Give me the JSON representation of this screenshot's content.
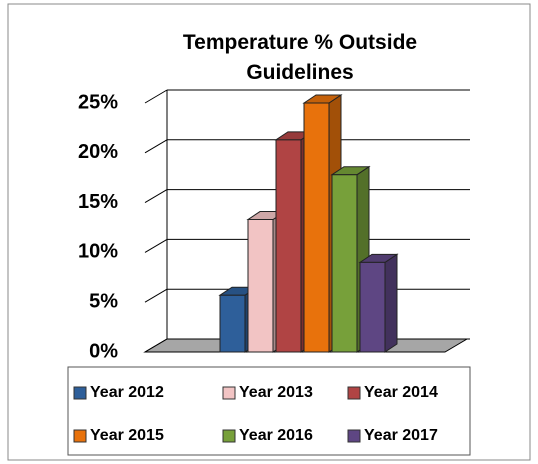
{
  "chart_data": {
    "type": "bar3d",
    "title": "Temperature % Outside Guidelines",
    "series": [
      {
        "name": "Year 2012",
        "color": "#2e5f9a",
        "values": [
          5.7
        ]
      },
      {
        "name": "Year 2013",
        "color": "#f2c4c4",
        "values": [
          13.3
        ]
      },
      {
        "name": "Year 2014",
        "color": "#b04444",
        "values": [
          21.3
        ]
      },
      {
        "name": "Year 2015",
        "color": "#e8720c",
        "values": [
          25
        ]
      },
      {
        "name": "Year 2016",
        "color": "#77a03a",
        "values": [
          17.8
        ]
      },
      {
        "name": "Year 2017",
        "color": "#5e4683",
        "values": [
          9
        ]
      }
    ],
    "ylim": [
      0,
      25
    ],
    "yticks": [
      {
        "value": 0,
        "label": "0%"
      },
      {
        "value": 5,
        "label": "5%"
      },
      {
        "value": 10,
        "label": "10%"
      },
      {
        "value": 15,
        "label": "15%"
      },
      {
        "value": 20,
        "label": "20%"
      },
      {
        "value": 25,
        "label": "25%"
      }
    ],
    "grid": true,
    "legend": "bottom"
  }
}
